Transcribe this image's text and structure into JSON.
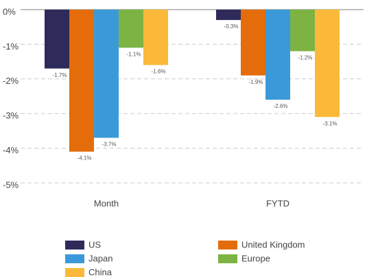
{
  "chart_data": {
    "type": "bar",
    "categories": [
      "Month",
      "FYTD"
    ],
    "series": [
      {
        "name": "US",
        "color": "#2e2a5a",
        "values": [
          -1.7,
          -0.3
        ],
        "value_labels": [
          "-1.7%",
          "-0.3%"
        ]
      },
      {
        "name": "United Kingdom",
        "color": "#e46c0a",
        "values": [
          -4.1,
          -1.9
        ],
        "value_labels": [
          "-4.1%",
          "-1.9%"
        ]
      },
      {
        "name": "Japan",
        "color": "#3a9ad9",
        "values": [
          -3.7,
          -2.6
        ],
        "value_labels": [
          "-3.7%",
          "-2.6%"
        ]
      },
      {
        "name": "Europe",
        "color": "#7cb342",
        "values": [
          -1.1,
          -1.2
        ],
        "value_labels": [
          "-1.1%",
          "-1.2%"
        ]
      },
      {
        "name": "China",
        "color": "#fbb93a",
        "values": [
          -1.6,
          -3.1
        ],
        "value_labels": [
          "-1.6%",
          "-3.1%"
        ]
      }
    ],
    "ylim": [
      -5,
      0
    ],
    "yticks": [
      {
        "value": 0,
        "label": "0%"
      },
      {
        "value": -1,
        "label": "-1%"
      },
      {
        "value": -2,
        "label": "-2%"
      },
      {
        "value": -3,
        "label": "-3%"
      },
      {
        "value": -4,
        "label": "-4%"
      },
      {
        "value": -5,
        "label": "-5%"
      }
    ],
    "grid": true
  }
}
